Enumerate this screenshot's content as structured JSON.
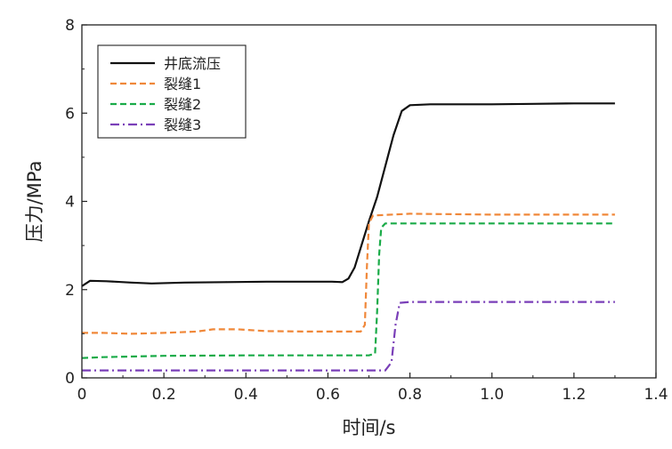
{
  "chart_data": {
    "type": "line",
    "xlabel": "时间/s",
    "ylabel": "压力/MPa",
    "xlim": [
      0,
      1.4
    ],
    "ylim": [
      0,
      8
    ],
    "x_ticks": [
      "0",
      "0.2",
      "0.4",
      "0.6",
      "0.8",
      "1.0",
      "1.2",
      "1.4"
    ],
    "y_ticks": [
      "0",
      "2",
      "4",
      "6",
      "8"
    ],
    "grid": false,
    "legend_position": "top-left",
    "series": [
      {
        "name": "井底流压",
        "color": "#111111",
        "dash": "solid",
        "points": [
          [
            0.0,
            2.08
          ],
          [
            0.02,
            2.2
          ],
          [
            0.06,
            2.19
          ],
          [
            0.12,
            2.16
          ],
          [
            0.17,
            2.14
          ],
          [
            0.25,
            2.16
          ],
          [
            0.35,
            2.17
          ],
          [
            0.45,
            2.18
          ],
          [
            0.55,
            2.18
          ],
          [
            0.61,
            2.18
          ],
          [
            0.635,
            2.17
          ],
          [
            0.65,
            2.25
          ],
          [
            0.665,
            2.5
          ],
          [
            0.68,
            2.95
          ],
          [
            0.7,
            3.55
          ],
          [
            0.72,
            4.1
          ],
          [
            0.74,
            4.8
          ],
          [
            0.76,
            5.5
          ],
          [
            0.78,
            6.05
          ],
          [
            0.8,
            6.18
          ],
          [
            0.85,
            6.2
          ],
          [
            1.0,
            6.2
          ],
          [
            1.1,
            6.21
          ],
          [
            1.2,
            6.22
          ],
          [
            1.3,
            6.22
          ]
        ]
      },
      {
        "name": "裂缝1",
        "color": "#f0883a",
        "dash": "dashed",
        "points": [
          [
            0.0,
            1.02
          ],
          [
            0.05,
            1.02
          ],
          [
            0.12,
            1.0
          ],
          [
            0.2,
            1.02
          ],
          [
            0.28,
            1.05
          ],
          [
            0.32,
            1.1
          ],
          [
            0.38,
            1.1
          ],
          [
            0.45,
            1.06
          ],
          [
            0.55,
            1.05
          ],
          [
            0.62,
            1.05
          ],
          [
            0.68,
            1.05
          ],
          [
            0.69,
            1.2
          ],
          [
            0.695,
            2.5
          ],
          [
            0.7,
            3.5
          ],
          [
            0.71,
            3.68
          ],
          [
            0.8,
            3.72
          ],
          [
            1.0,
            3.7
          ],
          [
            1.2,
            3.7
          ],
          [
            1.3,
            3.7
          ]
        ]
      },
      {
        "name": "裂缝2",
        "color": "#1aab48",
        "dash": "dashed",
        "points": [
          [
            0.0,
            0.45
          ],
          [
            0.05,
            0.47
          ],
          [
            0.2,
            0.5
          ],
          [
            0.4,
            0.51
          ],
          [
            0.6,
            0.51
          ],
          [
            0.7,
            0.51
          ],
          [
            0.715,
            0.55
          ],
          [
            0.72,
            1.5
          ],
          [
            0.725,
            2.8
          ],
          [
            0.73,
            3.4
          ],
          [
            0.74,
            3.5
          ],
          [
            0.8,
            3.5
          ],
          [
            1.0,
            3.5
          ],
          [
            1.2,
            3.5
          ],
          [
            1.3,
            3.5
          ]
        ]
      },
      {
        "name": "裂缝3",
        "color": "#7a3fb8",
        "dash": "dashdot",
        "points": [
          [
            0.0,
            0.17
          ],
          [
            0.2,
            0.17
          ],
          [
            0.4,
            0.17
          ],
          [
            0.6,
            0.17
          ],
          [
            0.74,
            0.17
          ],
          [
            0.755,
            0.35
          ],
          [
            0.765,
            1.2
          ],
          [
            0.775,
            1.7
          ],
          [
            0.8,
            1.72
          ],
          [
            1.0,
            1.72
          ],
          [
            1.2,
            1.72
          ],
          [
            1.3,
            1.72
          ]
        ]
      }
    ]
  }
}
